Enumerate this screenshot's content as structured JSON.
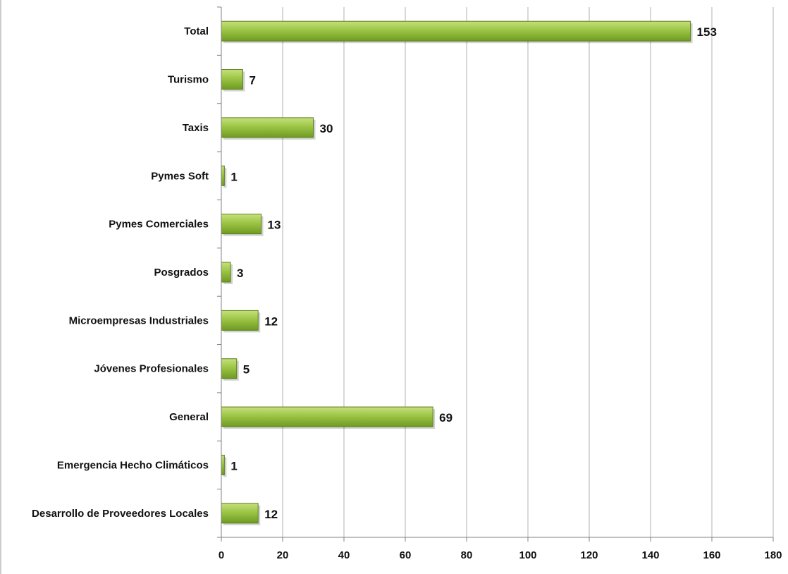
{
  "chart_data": {
    "type": "bar",
    "orientation": "horizontal",
    "categories": [
      "Total",
      "Turismo",
      "Taxis",
      "Pymes Soft",
      "Pymes Comerciales",
      "Posgrados",
      "Microempresas Industriales",
      "Jóvenes Profesionales",
      "General",
      "Emergencia Hecho Climáticos",
      "Desarrollo de Proveedores Locales"
    ],
    "values": [
      153,
      7,
      30,
      1,
      13,
      3,
      12,
      5,
      69,
      1,
      12
    ],
    "value_labels": [
      "153",
      "7",
      "30",
      "1",
      "13",
      "3",
      "12",
      "5",
      "69",
      "1",
      "12"
    ],
    "highlight_index": 0,
    "xlim": [
      0,
      180
    ],
    "x_ticks": [
      0,
      20,
      40,
      60,
      80,
      100,
      120,
      140,
      160,
      180
    ],
    "x_tick_labels": [
      "0",
      "20",
      "40",
      "60",
      "80",
      "100",
      "120",
      "140",
      "160",
      "180"
    ],
    "grid": "vertical",
    "legend": "none",
    "title": "",
    "xlabel": "",
    "ylabel": ""
  },
  "colors": {
    "bar_top": "#c6e07c",
    "bar_mid": "#9cc545",
    "bar_bottom": "#6f9a22",
    "bar_edge": "#58801a",
    "gridline": "#b0b0b0",
    "axis": "#808080",
    "text": "#111111",
    "highlight_text": "#e21a1a"
  }
}
